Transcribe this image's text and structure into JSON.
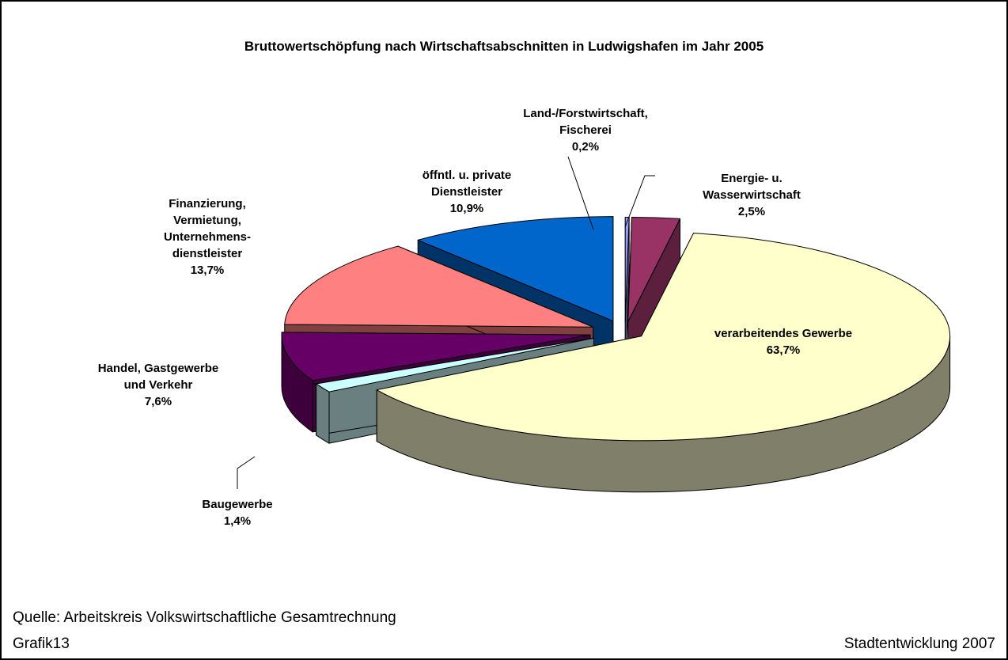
{
  "chart_data": {
    "type": "pie",
    "title": "Bruttowertschöpfung nach Wirtschaftsabschnitten in Ludwigshafen im Jahr 2005",
    "categories": [
      "Land-/Forstwirtschaft,\nFischerei",
      "Energie- u.\nWasserwirtschaft",
      "verarbeitendes Gewerbe",
      "Baugewerbe",
      "Handel, Gastgewerbe\nund Verkehr",
      "Finanzierung,\nVermietung,\nUnternehmens-\ndienstleister",
      "öffntl. u. private\nDienstleister"
    ],
    "values": [
      0.2,
      2.5,
      63.7,
      1.4,
      7.6,
      13.7,
      10.9
    ],
    "value_labels": [
      "0,2%",
      "2,5%",
      "63,7%",
      "1,4%",
      "7,6%",
      "13,7%",
      "10,9%"
    ],
    "colors": [
      "#9999ff",
      "#993366",
      "#ffffcc",
      "#ccffff",
      "#660066",
      "#ff8080",
      "#0066cc"
    ],
    "side_colors": [
      "#5c5c99",
      "#5c1f3d",
      "#80806a",
      "#6a8080",
      "#3d003d",
      "#804040",
      "#003366"
    ],
    "source": "Quelle: Arbeitskreis Volkswirtschaftliche Gesamtrechnung",
    "figure": "Grafik13",
    "credit": "Stadtentwicklung 2007"
  }
}
